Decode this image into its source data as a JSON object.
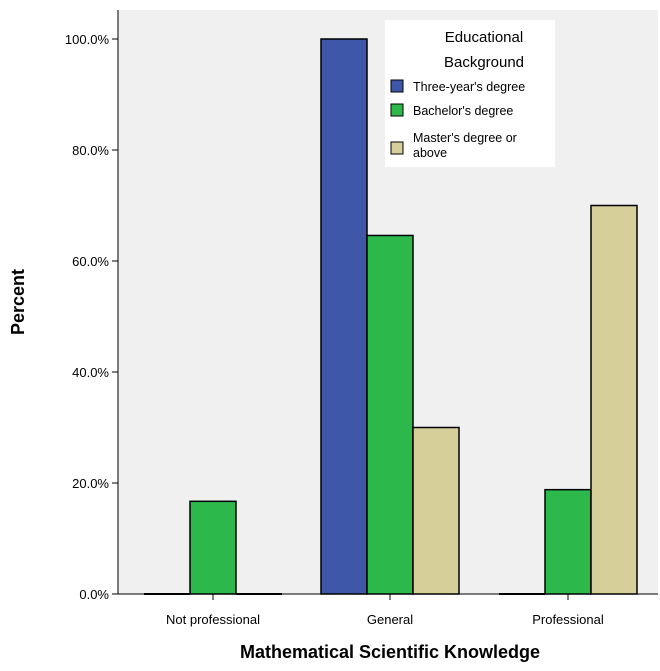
{
  "chart_data": {
    "type": "bar",
    "xlabel": "Mathematical Scientific Knowledge",
    "ylabel": "Percent",
    "categories": [
      "Not professional",
      "General",
      "Professional"
    ],
    "series": [
      {
        "name": "Three-year's degree",
        "values": [
          0,
          100.0,
          0
        ],
        "color": "#3f57a8"
      },
      {
        "name": "Bachelor's degree",
        "values": [
          16.7,
          64.6,
          18.8
        ],
        "color": "#2db84c"
      },
      {
        "name": "Master's degree or above",
        "values": [
          0,
          30.0,
          70.0
        ],
        "color": "#d6cf9a"
      }
    ],
    "ylim": [
      0,
      105
    ],
    "yticks": [
      {
        "value": 0,
        "label": "0.0%"
      },
      {
        "value": 20,
        "label": "20.0%"
      },
      {
        "value": 40,
        "label": "40.0%"
      },
      {
        "value": 60,
        "label": "60.0%"
      },
      {
        "value": 80,
        "label": "80.0%"
      },
      {
        "value": 100,
        "label": "100.0%"
      }
    ],
    "legend": {
      "title_lines": [
        "Educational",
        "Background"
      ],
      "position": "top-right"
    },
    "grid": false,
    "plot_background": "#f0f0f0"
  }
}
